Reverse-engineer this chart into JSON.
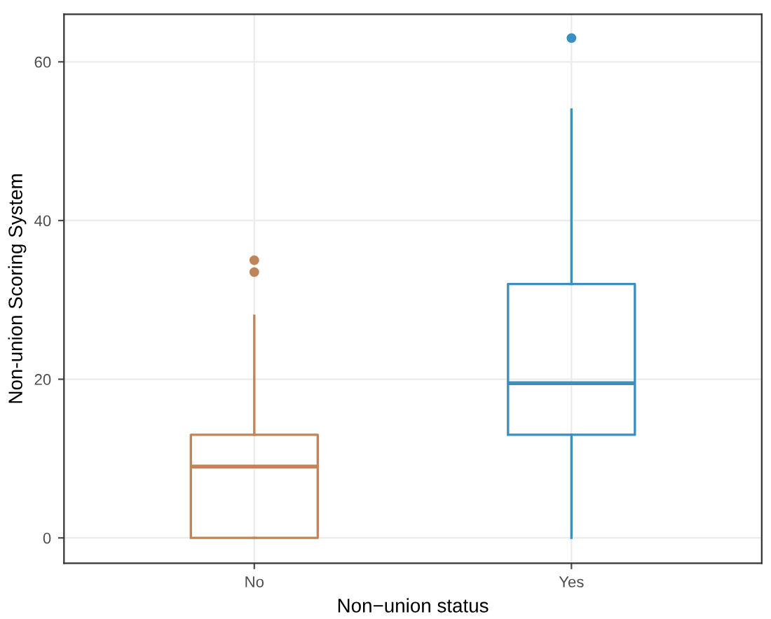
{
  "chart_data": {
    "type": "box",
    "xlabel": "Non−union status",
    "ylabel": "Non-union Scoring System",
    "categories": [
      "No",
      "Yes"
    ],
    "boxes": [
      {
        "low": 0,
        "q1": 0,
        "median": 9,
        "q3": 13,
        "high": 28,
        "outliers": [
          33.5,
          35
        ]
      },
      {
        "low": 0,
        "q1": 13,
        "median": 19.5,
        "q3": 32,
        "high": 54,
        "outliers": [
          63
        ]
      }
    ],
    "colors": [
      "#c0845a",
      "#3a8fc0"
    ],
    "ylim": [
      -3.2,
      66
    ],
    "yticks": [
      0,
      20,
      40,
      60
    ],
    "grid": true
  }
}
